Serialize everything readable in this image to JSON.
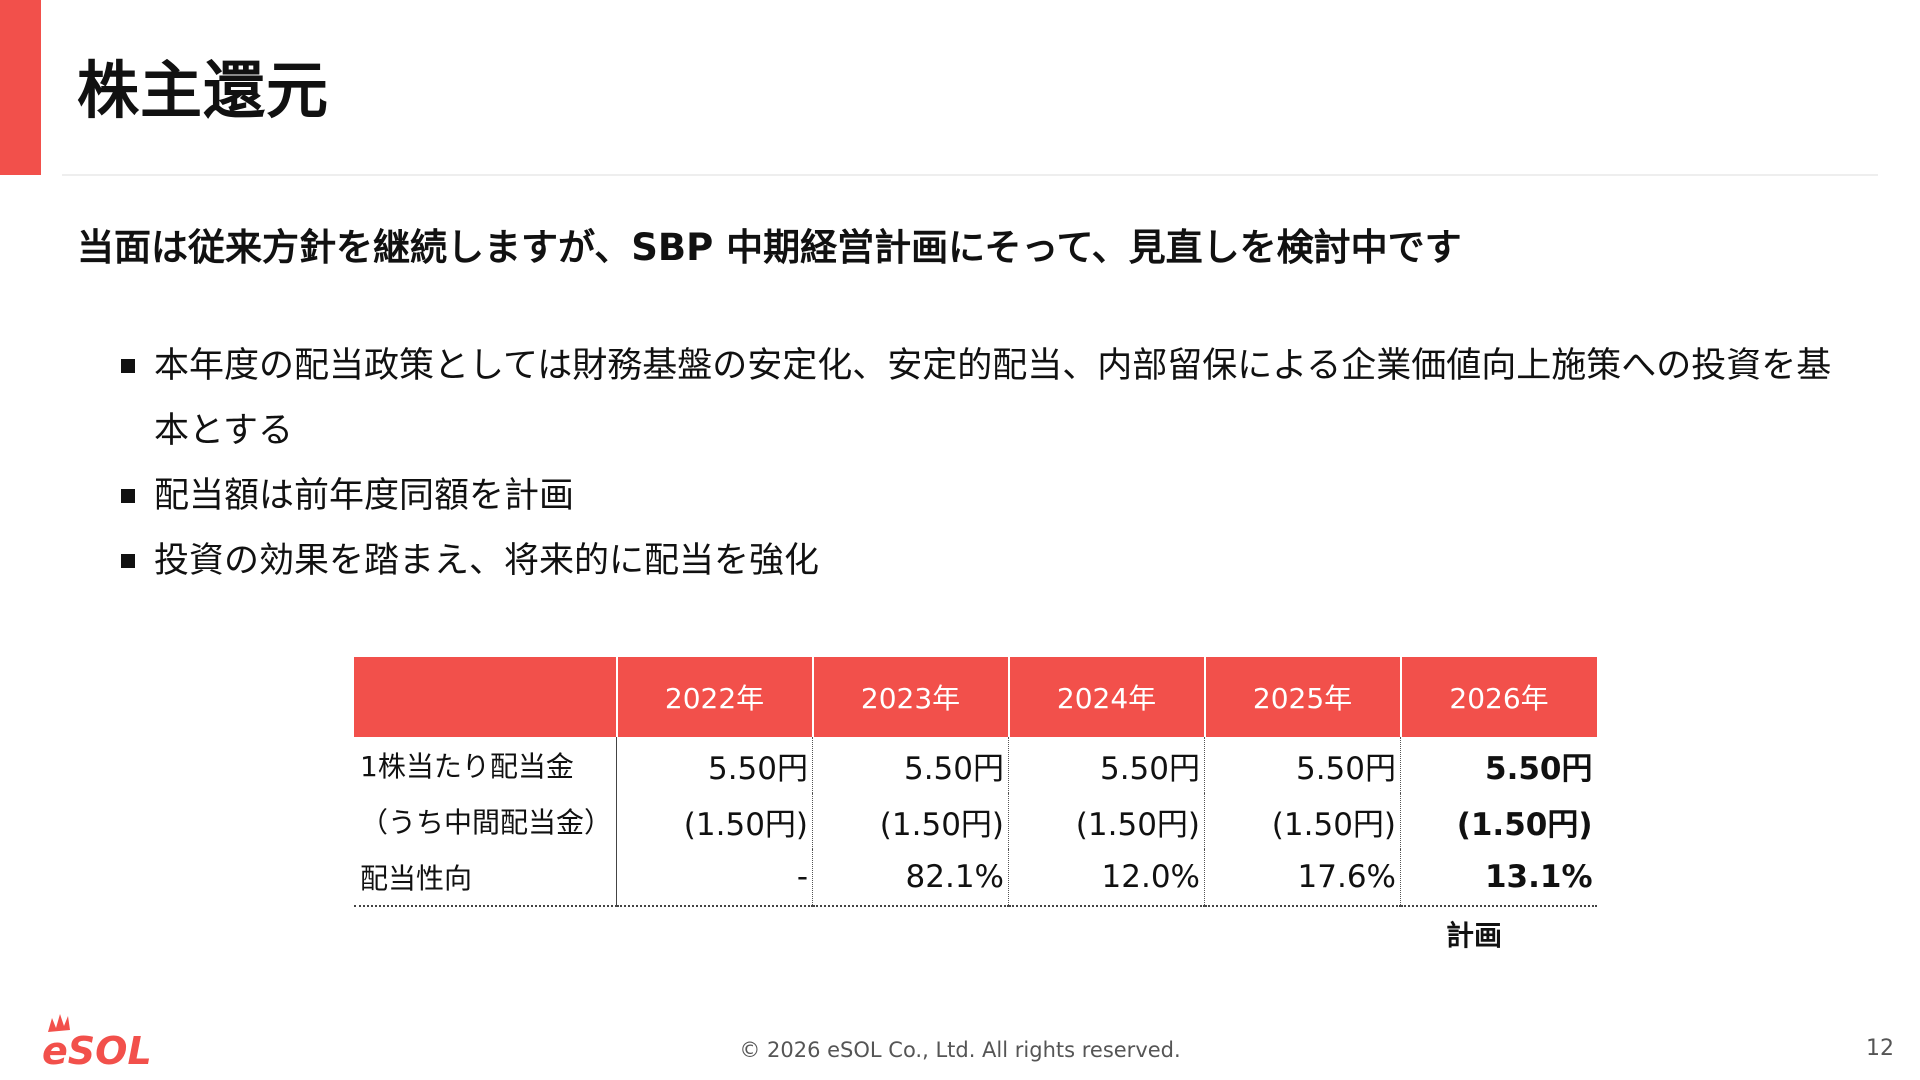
{
  "page": {
    "title": "株主還元",
    "subtitle": "当面は従来方針を継続しますが、SBP 中期経営計画にそって、見直しを検討中です",
    "accent_color": "#f2504b"
  },
  "bullets": [
    {
      "text": "本年度の配当政策としては財務基盤の安定化、安定的配当、内部留保による企業価値向上施策への投資を基本とする"
    },
    {
      "text": "配当額は前年度同額を計画"
    },
    {
      "text": "投資の効果を踏まえ、将来的に配当を強化"
    }
  ],
  "table": {
    "columns": [
      "",
      "2022年",
      "2023年",
      "2024年",
      "2025年",
      "2026年"
    ],
    "rows": [
      {
        "label": "1株当たり配当金",
        "values": [
          "5.50円",
          "5.50円",
          "5.50円",
          "5.50円",
          "5.50円"
        ]
      },
      {
        "label": "（うち中間配当金）",
        "values": [
          "(1.50円)",
          "(1.50円)",
          "(1.50円)",
          "(1.50円)",
          "(1.50円)"
        ]
      },
      {
        "label": "配当性向",
        "values": [
          "-",
          "82.1%",
          "12.0%",
          "17.6%",
          "13.1%"
        ]
      }
    ],
    "plan_note": "計画"
  },
  "footer": {
    "logo_text": "eSOL",
    "copyright": "© 2026 eSOL Co., Ltd. All rights reserved.",
    "page_number": "12"
  }
}
